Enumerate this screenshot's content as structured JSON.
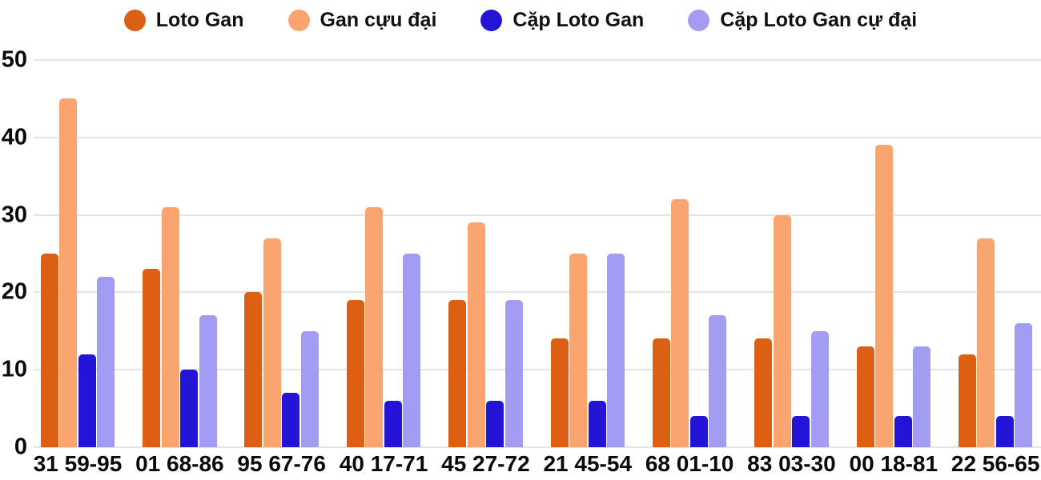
{
  "chart_data": {
    "type": "bar",
    "title": "",
    "categories": [
      "31 59-95",
      "01 68-86",
      "95 67-76",
      "40 17-71",
      "45 27-72",
      "21 45-54",
      "68 01-10",
      "83 03-30",
      "00 18-81",
      "22 56-65"
    ],
    "series": [
      {
        "name": "Loto Gan",
        "color": "#DC5F13",
        "values": [
          25,
          23,
          20,
          19,
          19,
          14,
          14,
          14,
          13,
          12
        ]
      },
      {
        "name": "Gan cựu đại",
        "color": "#FAA46F",
        "values": [
          45,
          31,
          27,
          31,
          29,
          25,
          32,
          30,
          39,
          27
        ]
      },
      {
        "name": "Cặp Loto Gan",
        "color": "#2414D6",
        "values": [
          12,
          10,
          7,
          6,
          6,
          6,
          4,
          4,
          4,
          4
        ]
      },
      {
        "name": "Cặp Loto Gan cự đại",
        "color": "#A29DF2",
        "values": [
          22,
          17,
          15,
          25,
          19,
          25,
          17,
          15,
          13,
          16
        ]
      }
    ],
    "xlabel": "",
    "ylabel": "",
    "ylim": [
      0,
      50
    ],
    "yticks": [
      0,
      10,
      20,
      30,
      40,
      50
    ],
    "grid": true,
    "legend_position": "top"
  },
  "colors": {
    "background": "#FFFFFF",
    "grid": "#E5E5E5",
    "axis_text": "#0A0A0A",
    "legend_text": "#111111"
  }
}
